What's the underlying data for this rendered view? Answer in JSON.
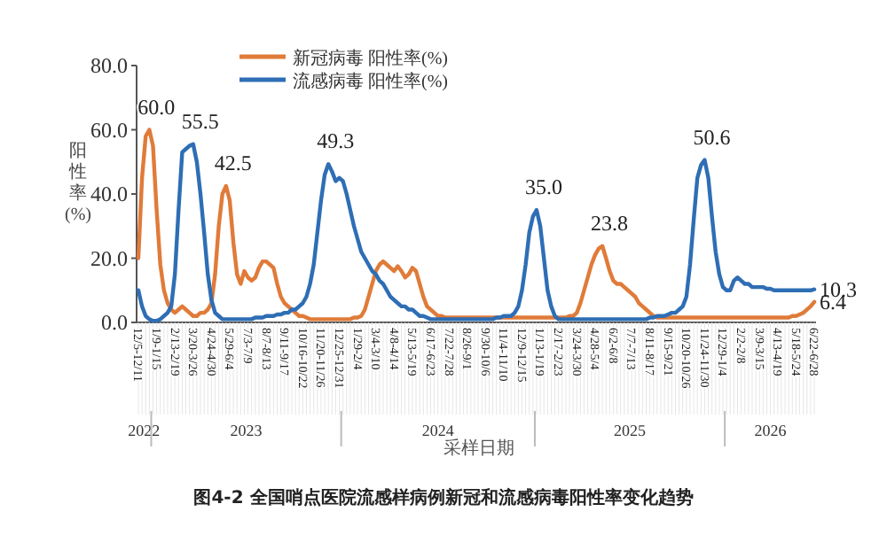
{
  "chart_data": {
    "type": "line",
    "title": "图4-2 全国哨点医院流感样病例新冠和流感病毒阳性率变化趋势",
    "xlabel": "采样日期",
    "ylabel": "阳性率(%)",
    "legend": "top",
    "ylim": [
      0,
      80
    ],
    "yticks": [
      {
        "value": 0,
        "label": "0.0"
      },
      {
        "value": 20,
        "label": "20.0"
      },
      {
        "value": 40,
        "label": "40.0"
      },
      {
        "value": 60,
        "label": "60.0"
      },
      {
        "value": 80,
        "label": "80.0"
      }
    ],
    "annotations": [
      "2022",
      "2023",
      "2024",
      "2025",
      "2026"
    ],
    "categories": [
      "12/5-12/11",
      null,
      null,
      null,
      null,
      "1/9-1/15",
      null,
      null,
      null,
      null,
      "2/13-2/19",
      null,
      null,
      null,
      null,
      "3/20-3/26",
      null,
      null,
      null,
      null,
      "4/24-4/30",
      null,
      null,
      null,
      null,
      "5/29-6/4",
      null,
      null,
      null,
      null,
      "7/3-7/9",
      null,
      null,
      null,
      null,
      "8/7-8/13",
      null,
      null,
      null,
      null,
      "9/11-9/17",
      null,
      null,
      null,
      null,
      "10/16-10/22",
      null,
      null,
      null,
      null,
      "11/20-11/26",
      null,
      null,
      null,
      null,
      "12/25-12/31",
      null,
      null,
      null,
      null,
      "1/29-2/4",
      null,
      null,
      null,
      null,
      "3/4-3/10",
      null,
      null,
      null,
      null,
      "4/8-4/14",
      null,
      null,
      null,
      null,
      "5/13-5/19",
      null,
      null,
      null,
      null,
      "6/17-6/23",
      null,
      null,
      null,
      null,
      "7/22-7/28",
      null,
      null,
      null,
      null,
      "8/26-9/1",
      null,
      null,
      null,
      null,
      "9/30-10/6",
      null,
      null,
      null,
      null,
      "11/4-11/10",
      null,
      null,
      null,
      null,
      "12/9-12/15",
      null,
      null,
      null,
      null,
      "1/13-1/19",
      null,
      null,
      null,
      null,
      "2/17-2/23",
      null,
      null,
      null,
      null,
      "3/24-3/30",
      null,
      null,
      null,
      null,
      "4/28-5/4",
      null,
      null,
      null,
      null,
      "6/2-6/8",
      null,
      null,
      null,
      null,
      "7/7-7/13",
      null,
      null,
      null,
      null,
      "8/11-8/17",
      null,
      null,
      null,
      null,
      "9/15-9/21",
      null,
      null,
      null,
      null,
      "10/20-10/26",
      null,
      null,
      null,
      null,
      "11/24-11/30",
      null,
      null,
      null,
      null,
      "12/29-1/4",
      null,
      null,
      null,
      null,
      "2/2-2/8",
      null,
      null,
      null,
      null,
      "3/9-3/15",
      null,
      null,
      null,
      null,
      "4/13-4/19",
      null,
      null,
      null,
      null,
      "5/18-5/24",
      null,
      null,
      null,
      null,
      "6/22-6/28"
    ],
    "series": [
      {
        "name": "新冠病毒 阳性率(%)",
        "color": "#e07b39",
        "values": [
          20,
          45,
          58,
          60,
          55,
          35,
          18,
          10,
          6,
          4,
          3,
          4,
          5,
          4,
          3,
          2,
          2,
          3,
          3,
          4,
          6,
          15,
          30,
          40,
          42.5,
          38,
          25,
          15,
          12,
          16,
          14,
          13,
          14,
          17,
          19,
          19,
          18,
          17,
          12,
          8,
          6,
          5,
          4,
          3,
          2,
          2,
          1.5,
          1,
          1,
          1,
          1,
          1,
          1,
          1,
          1,
          1,
          1,
          1,
          1,
          1.5,
          1.5,
          2,
          4,
          8,
          12,
          16,
          18,
          19,
          18,
          17,
          16,
          17.5,
          16,
          14,
          15,
          17,
          16,
          12,
          8,
          5,
          4,
          3,
          2,
          2,
          1.5,
          1.5,
          1.5,
          1.5,
          1.5,
          1.5,
          1.5,
          1.5,
          1.5,
          1.5,
          1.5,
          1.5,
          1.5,
          1.5,
          1.5,
          1.5,
          1.5,
          1.5,
          1.5,
          1.5,
          1.5,
          1.5,
          1.5,
          1.5,
          1.5,
          1.5,
          1.5,
          1.5,
          1.5,
          1.5,
          1.5,
          1.5,
          1.5,
          1.5,
          2,
          2,
          3,
          6,
          10,
          14,
          18,
          21,
          23,
          23.8,
          20,
          16,
          13,
          12,
          12,
          11,
          10,
          9,
          8,
          6,
          5,
          4,
          3,
          2,
          1.5,
          1.5,
          1.5,
          1.5,
          1.5,
          1.5,
          1.5,
          1.5,
          1.5,
          1.5,
          1.5,
          1.5,
          1.5,
          1.5,
          1.5,
          1.5,
          1.5,
          1.5,
          1.5,
          1.5,
          1.5,
          1.5,
          1.5,
          1.5,
          1.5,
          1.5,
          1.5,
          1.5,
          1.5,
          1.5,
          1.5,
          1.5,
          1.5,
          1.5,
          1.5,
          1.5,
          1.5,
          2,
          2,
          2.5,
          3,
          4,
          5,
          6.4
        ],
        "value_labels": [
          null,
          null,
          null,
          "60.0",
          null,
          null,
          null,
          null,
          null,
          null,
          null,
          null,
          null,
          null,
          null,
          null,
          null,
          null,
          null,
          null,
          null,
          null,
          null,
          null,
          "42.5",
          null,
          null,
          null,
          null,
          null,
          null,
          null,
          null,
          null,
          null,
          null,
          null,
          null,
          null,
          null,
          null,
          null,
          null,
          null,
          null,
          null,
          null,
          null,
          null,
          null,
          null,
          null,
          null,
          null,
          null,
          null,
          null,
          null,
          null,
          null,
          null,
          null,
          null,
          null,
          null,
          null,
          null,
          null,
          null,
          null,
          null,
          null,
          null,
          null,
          null,
          null,
          null,
          null,
          null,
          null,
          null,
          null,
          null,
          null,
          null,
          null,
          null,
          null,
          null,
          null,
          null,
          null,
          null,
          null,
          null,
          null,
          null,
          null,
          null,
          null,
          null,
          null,
          null,
          null,
          null,
          null,
          null,
          null,
          null,
          null,
          null,
          null,
          null,
          null,
          null,
          null,
          null,
          null,
          null,
          null,
          null,
          null,
          null,
          null,
          null,
          null,
          null,
          "23.8",
          null,
          null,
          null,
          null,
          null,
          null,
          null,
          null,
          null,
          null,
          null,
          null,
          null,
          null,
          null,
          null,
          null,
          null,
          null,
          null,
          null,
          null,
          null,
          null,
          null,
          null,
          null,
          null,
          null,
          null,
          null,
          null,
          null,
          null,
          null,
          null,
          null,
          null,
          null,
          null,
          null,
          null,
          null,
          null,
          null,
          null,
          null,
          null,
          null,
          null,
          null,
          null,
          null,
          null,
          null,
          null,
          null,
          "6.4"
        ]
      },
      {
        "name": "流感病毒 阳性率(%)",
        "color": "#2e6eb5",
        "values": [
          10,
          5,
          2,
          1,
          0.5,
          0.5,
          1,
          2,
          3,
          5,
          15,
          35,
          53,
          54,
          55,
          55.5,
          50,
          40,
          28,
          15,
          7,
          3,
          2,
          1,
          1,
          1,
          1,
          1,
          1,
          1,
          1,
          1,
          1.5,
          1.5,
          1.5,
          2,
          2,
          2,
          2.5,
          2.5,
          3,
          3,
          4,
          4,
          5,
          6,
          8,
          12,
          18,
          28,
          38,
          46,
          49.3,
          47,
          44,
          45,
          44,
          40,
          35,
          30,
          26,
          22,
          20,
          18,
          16,
          15,
          13,
          12,
          10,
          8,
          7,
          6,
          5,
          5,
          4,
          4,
          3,
          2,
          2,
          1.5,
          1,
          1,
          1,
          1,
          1,
          1,
          1,
          1,
          1,
          1,
          1,
          1,
          1,
          1,
          1,
          1,
          1,
          1,
          1.5,
          1.5,
          2,
          2,
          2,
          3,
          5,
          10,
          18,
          28,
          33,
          35,
          30,
          20,
          10,
          5,
          2,
          1,
          1,
          1,
          1,
          1,
          1,
          1,
          1,
          1,
          1,
          1,
          1,
          1,
          1,
          1,
          1,
          1,
          1,
          1,
          1,
          1,
          1,
          1,
          1,
          1,
          1.5,
          1.5,
          2,
          2,
          2,
          2.5,
          3,
          3,
          4,
          5,
          8,
          18,
          32,
          45,
          49,
          50.6,
          45,
          33,
          22,
          15,
          11,
          10,
          10,
          13,
          14,
          13,
          12,
          12,
          11,
          11,
          11,
          11,
          10.5,
          10.5,
          10,
          10,
          10,
          10,
          10,
          10,
          10,
          10,
          10,
          10,
          10,
          10.3
        ],
        "value_labels": [
          null,
          null,
          null,
          null,
          null,
          null,
          null,
          null,
          null,
          null,
          null,
          null,
          null,
          null,
          null,
          "55.5",
          null,
          null,
          null,
          null,
          null,
          null,
          null,
          null,
          null,
          null,
          null,
          null,
          null,
          null,
          null,
          null,
          null,
          null,
          null,
          null,
          null,
          null,
          null,
          null,
          null,
          null,
          null,
          null,
          null,
          null,
          null,
          null,
          null,
          null,
          null,
          null,
          "49.3",
          null,
          null,
          null,
          null,
          null,
          null,
          null,
          null,
          null,
          null,
          null,
          null,
          null,
          null,
          null,
          null,
          null,
          null,
          null,
          null,
          null,
          null,
          null,
          null,
          null,
          null,
          null,
          null,
          null,
          null,
          null,
          null,
          null,
          null,
          null,
          null,
          null,
          null,
          null,
          null,
          null,
          null,
          null,
          null,
          null,
          null,
          null,
          null,
          null,
          null,
          null,
          null,
          null,
          null,
          null,
          null,
          "35.0",
          null,
          null,
          null,
          null,
          null,
          null,
          null,
          null,
          null,
          null,
          null,
          null,
          null,
          null,
          null,
          null,
          null,
          null,
          null,
          null,
          null,
          null,
          null,
          null,
          null,
          null,
          null,
          null,
          null,
          null,
          null,
          null,
          null,
          null,
          null,
          null,
          null,
          null,
          null,
          null,
          null,
          null,
          null,
          null,
          null,
          "50.6",
          null,
          null,
          null,
          null,
          null,
          null,
          null,
          null,
          null,
          null,
          null,
          null,
          null,
          null,
          null,
          null,
          null,
          null,
          null,
          null,
          null,
          null,
          null,
          null,
          null,
          null,
          null,
          null,
          null,
          "10.3"
        ]
      }
    ]
  }
}
